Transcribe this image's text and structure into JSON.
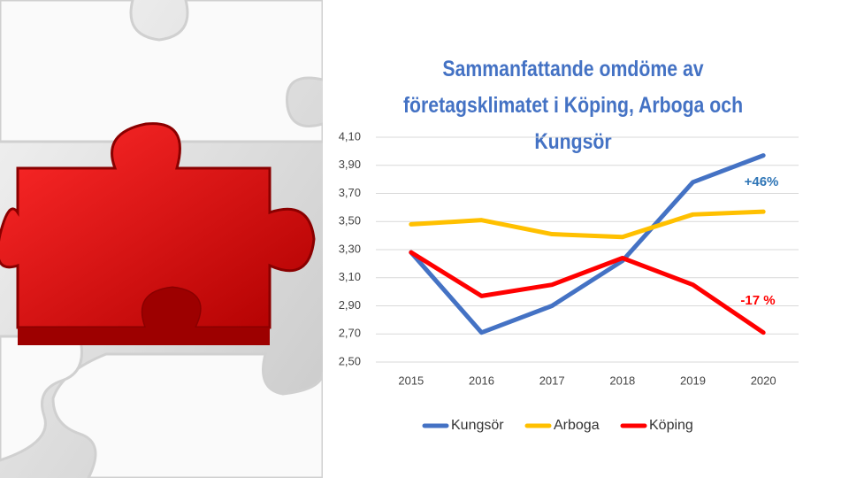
{
  "chart_data": {
    "type": "line",
    "title": "Sammanfattande omdöme av företagsklimatet i Köping, Arboga och Kungsör",
    "categories": [
      "2015",
      "2016",
      "2017",
      "2018",
      "2019",
      "2020"
    ],
    "series": [
      {
        "name": "Kungsör",
        "color": "#4472c4",
        "values": [
          3.28,
          2.71,
          2.9,
          3.22,
          3.78,
          3.97
        ]
      },
      {
        "name": "Arboga",
        "color": "#ffc000",
        "values": [
          3.48,
          3.51,
          3.41,
          3.39,
          3.55,
          3.57
        ]
      },
      {
        "name": "Köping",
        "color": "#ff0000",
        "values": [
          3.28,
          2.97,
          3.05,
          3.24,
          3.05,
          2.71
        ]
      }
    ],
    "ylim": [
      2.5,
      4.1
    ],
    "yticks": [
      {
        "value": 2.5,
        "label": "2,50"
      },
      {
        "value": 2.7,
        "label": "2,70"
      },
      {
        "value": 2.9,
        "label": "2,90"
      },
      {
        "value": 3.1,
        "label": "3,10"
      },
      {
        "value": 3.3,
        "label": "3,30"
      },
      {
        "value": 3.5,
        "label": "3,50"
      },
      {
        "value": 3.7,
        "label": "3,70"
      },
      {
        "value": 3.9,
        "label": "3,90"
      },
      {
        "value": 4.1,
        "label": "4,10"
      }
    ],
    "grid": true,
    "legend": "bottom",
    "annotations": [
      {
        "text": "+46%",
        "color": "#2e75b6"
      },
      {
        "text": "-17 %",
        "color": "#ff0000"
      }
    ]
  }
}
